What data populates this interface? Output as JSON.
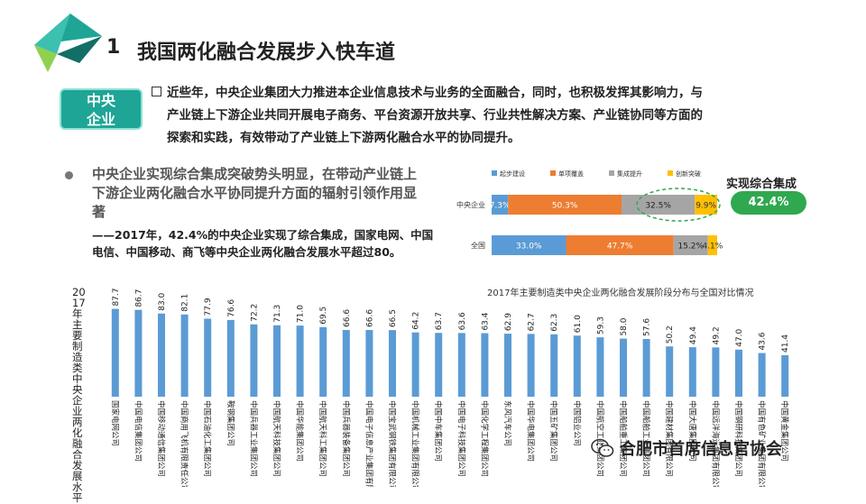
{
  "header": {
    "number": "1",
    "title": "我国两化融合发展步入快车道"
  },
  "badge": {
    "line1": "中央",
    "line2": "企业"
  },
  "intro": {
    "line1": "近些年，中央企业集团大力推进本企业信息技术与业务的全面融合，同时，也积极发挥其影响力，与",
    "line2": "产业链上下游企业共同开展电子商务、平台资源开放共享、行业共性解决方案、产业链协同等方面的",
    "line3": "探索和实践，有效带动了产业链上下游两化融合水平的协同提升。"
  },
  "subpoint": {
    "title": "中央企业实现综合集成突破势头明显，在带动产业链上下游企业两化融合水平协同提升方面的辐射引领作用显著",
    "detail": "——2017年，42.4%的中央企业实现了综合集成，国家电网、中国电信、中国移动、商飞等中央企业两化融合发展水平超过80。"
  },
  "callout": {
    "title": "实现综合集成",
    "value": "42.4%"
  },
  "watermark": "合肥市首席信息官协会",
  "colors": {
    "teal": "#1ea596",
    "bar_blue": "#5b9bd5",
    "orange": "#ed7d31",
    "gray": "#a5a5a5",
    "yellow": "#ffc000",
    "green": "#2fa84f"
  },
  "chart_data": [
    {
      "type": "bar",
      "orientation": "horizontal-stacked",
      "title": "2017年主要制造类中央企业两化融合发展阶段分布与全国对比情况",
      "categories": [
        "中央企业",
        "全国"
      ],
      "series": [
        {
          "name": "起步建设",
          "values": [
            7.3,
            33.0
          ],
          "labels": [
            "7.3%",
            "33.0%"
          ]
        },
        {
          "name": "单项覆盖",
          "values": [
            50.3,
            47.7
          ],
          "labels": [
            "50.3%",
            "47.7%"
          ]
        },
        {
          "name": "集成提升",
          "values": [
            32.5,
            15.2
          ],
          "labels": [
            "32.5%",
            "15.2%"
          ]
        },
        {
          "name": "创新突破",
          "values": [
            9.9,
            4.1
          ],
          "labels": [
            "9.9%",
            "4.1%"
          ]
        }
      ],
      "legend": "top"
    },
    {
      "type": "bar",
      "ylabel": "2017年主要制造类中央企业两化融合发展水平",
      "categories": [
        "国家电网公司",
        "中国电信集团公司",
        "中国移动通信集团公司",
        "中国商用飞机有限责任公司",
        "中国石油化工集团公司",
        "鞍钢集团公司",
        "中国兵器工业集团公司",
        "中国航天科技集团公司",
        "中国华能集团公司",
        "中国航天科工集团公司",
        "中国兵器装备集团公司",
        "中国电子信息产业集团有限公司",
        "中国宝武钢铁集团有限公司",
        "中国机械工业集团有限公司",
        "中国中车集团公司",
        "中国电子科技集团公司",
        "中国化学工程集团公司",
        "东风汽车公司",
        "中国华电集团公司",
        "中国五矿集团公司",
        "中国铝业公司",
        "中国航空工业集团公司",
        "中国船舶重工集团公司",
        "中国船舶工业集团公司",
        "中国建材集团有限公司",
        "中国大唐集团公司",
        "中国远洋海运集团有限公司",
        "中国钢研科技集团公司",
        "中国有色矿业集团有限公司",
        "中国黄金集团公司"
      ],
      "values": [
        87.7,
        86.7,
        83.0,
        82.1,
        77.9,
        76.6,
        72.2,
        71.3,
        71.0,
        69.5,
        66.6,
        66.6,
        66.5,
        64.2,
        63.7,
        63.6,
        63.4,
        62.9,
        62.7,
        62.3,
        61.0,
        59.3,
        58.0,
        57.6,
        50.2,
        49.4,
        49.2,
        47.0,
        43.6,
        41.4
      ]
    }
  ]
}
